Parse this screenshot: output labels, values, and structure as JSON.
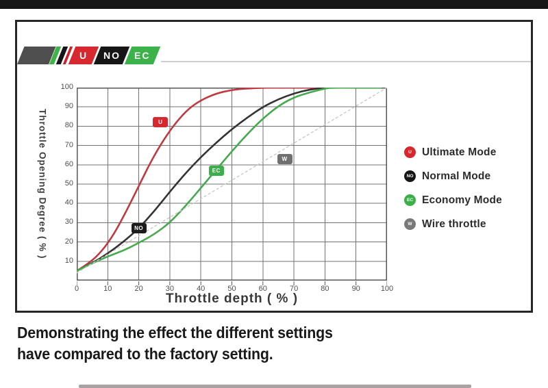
{
  "logo": {
    "segments": [
      {
        "label": "U",
        "color": "#d7282f"
      },
      {
        "label": "NO",
        "color": "#161616"
      },
      {
        "label": "EC",
        "color": "#3bb24a"
      }
    ]
  },
  "chart_data": {
    "type": "line",
    "title": "",
    "xlabel": "Throttle depth ( % )",
    "ylabel": "Throttle Opening Degree ( % )",
    "xlim": [
      0,
      100
    ],
    "ylim": [
      0,
      100
    ],
    "x_ticks": [
      0,
      10,
      20,
      30,
      40,
      50,
      60,
      70,
      80,
      90,
      100
    ],
    "y_ticks": [
      100,
      90,
      80,
      70,
      60,
      50,
      40,
      30,
      20,
      10
    ],
    "grid": true,
    "legend_position": "right-outside",
    "series": [
      {
        "name": "Ultimate Mode",
        "color": "#bf3a40",
        "style": "solid",
        "points": [
          [
            0,
            5
          ],
          [
            4,
            9
          ],
          [
            8,
            15
          ],
          [
            12,
            24
          ],
          [
            16,
            36
          ],
          [
            20,
            49
          ],
          [
            24,
            62
          ],
          [
            28,
            73
          ],
          [
            32,
            82
          ],
          [
            36,
            89
          ],
          [
            40,
            93.5
          ],
          [
            45,
            97
          ],
          [
            50,
            98.8
          ],
          [
            55,
            99.6
          ],
          [
            62,
            100
          ],
          [
            80,
            100
          ]
        ]
      },
      {
        "name": "Normal Mode",
        "color": "#333333",
        "style": "solid",
        "points": [
          [
            0,
            5
          ],
          [
            5,
            9
          ],
          [
            10,
            14
          ],
          [
            15,
            20
          ],
          [
            20,
            27
          ],
          [
            25,
            36
          ],
          [
            30,
            46
          ],
          [
            35,
            55.5
          ],
          [
            40,
            64
          ],
          [
            45,
            71.5
          ],
          [
            50,
            78.5
          ],
          [
            55,
            84.5
          ],
          [
            60,
            90
          ],
          [
            65,
            94
          ],
          [
            70,
            97
          ],
          [
            75,
            99
          ],
          [
            80,
            100
          ]
        ]
      },
      {
        "name": "Economy Mode",
        "color": "#45a94d",
        "style": "solid",
        "points": [
          [
            0,
            5
          ],
          [
            5,
            9
          ],
          [
            10,
            12.5
          ],
          [
            15,
            15.5
          ],
          [
            20,
            19.5
          ],
          [
            25,
            24
          ],
          [
            30,
            30
          ],
          [
            35,
            38.5
          ],
          [
            40,
            48
          ],
          [
            45,
            57.5
          ],
          [
            50,
            67
          ],
          [
            55,
            76
          ],
          [
            60,
            84
          ],
          [
            65,
            90.5
          ],
          [
            70,
            95
          ],
          [
            75,
            97.5
          ],
          [
            80,
            99.5
          ],
          [
            82,
            100
          ],
          [
            98,
            100
          ]
        ]
      },
      {
        "name": "Wire throttle",
        "color": "#c9c9c9",
        "style": "dotted",
        "points": [
          [
            0,
            4
          ],
          [
            100,
            100
          ]
        ]
      }
    ],
    "curve_badges": [
      {
        "label": "U",
        "x": 27,
        "y": 82,
        "color": "#d7282f"
      },
      {
        "label": "NO",
        "x": 20,
        "y": 27,
        "color": "#1c1c1c"
      },
      {
        "label": "EC",
        "x": 45,
        "y": 57,
        "color": "#3bb04a"
      },
      {
        "label": "W",
        "x": 67,
        "y": 63,
        "color": "#707070"
      }
    ]
  },
  "legend": {
    "items": [
      {
        "badge": "U",
        "color": "#d7282f",
        "label": "Ultimate Mode"
      },
      {
        "badge": "NO",
        "color": "#161616",
        "label": "Normal Mode"
      },
      {
        "badge": "EC",
        "color": "#3bb04a",
        "label": "Economy Mode"
      },
      {
        "badge": "W",
        "color": "#7a7a7a",
        "label": "Wire throttle"
      }
    ]
  },
  "caption": {
    "line1": "Demonstrating the effect the different settings",
    "line2": "have compared to the factory setting."
  }
}
